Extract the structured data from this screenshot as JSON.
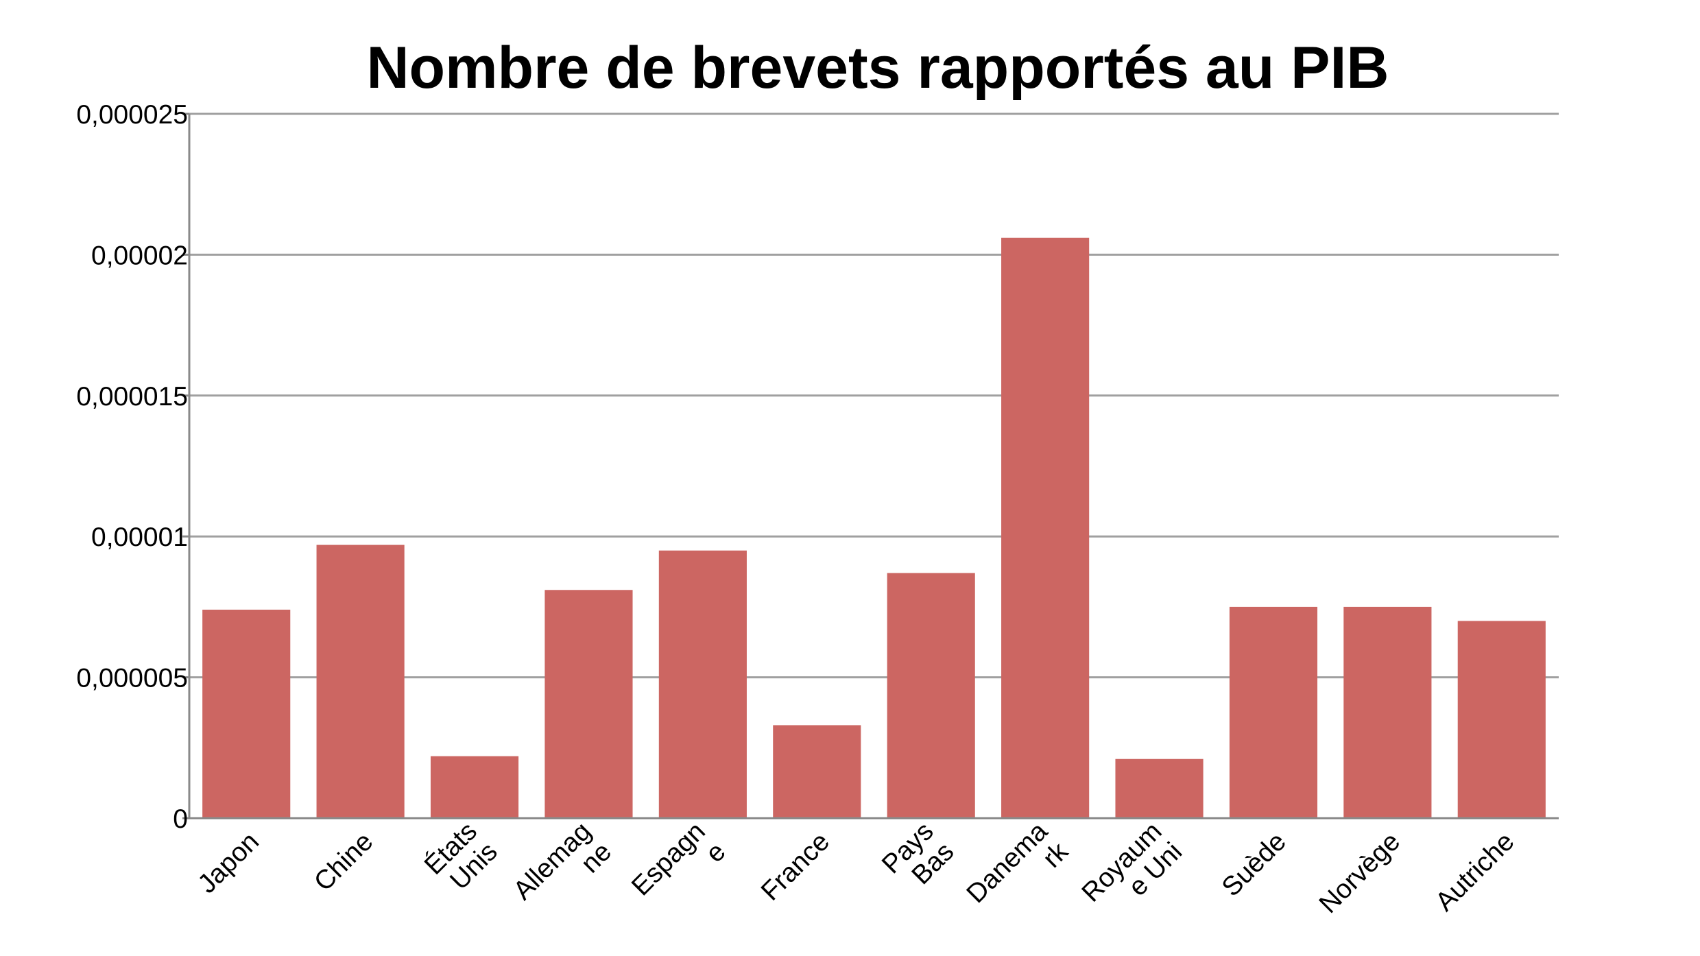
{
  "chart_data": {
    "type": "bar",
    "title": "Nombre de brevets rapportés au PIB",
    "xlabel": "",
    "ylabel": "",
    "ylim": [
      0,
      2.5e-05
    ],
    "yticks": [
      0,
      5e-06,
      1e-05,
      1.5e-05,
      2e-05,
      2.5e-05
    ],
    "ytick_labels": [
      "0",
      "0,000005",
      "0,00001",
      "0,000015",
      "0,00002",
      "0,000025"
    ],
    "grid": true,
    "legend": "none",
    "categories": [
      "Japon",
      "Chine",
      "États Unis",
      "Allemagne",
      "Espagne",
      "France",
      "Pays Bas",
      "Danemark",
      "Royaume Uni",
      "Suède",
      "Norvège",
      "Autriche"
    ],
    "category_labels": [
      [
        "Japon"
      ],
      [
        "Chine"
      ],
      [
        "États",
        "Unis"
      ],
      [
        "Allemag",
        "ne"
      ],
      [
        "Espagn",
        "e"
      ],
      [
        "France"
      ],
      [
        "Pays",
        "Bas"
      ],
      [
        "Danema",
        "rk"
      ],
      [
        "Royaum",
        "e Uni"
      ],
      [
        "Suède"
      ],
      [
        "Norvège"
      ],
      [
        "Autriche"
      ]
    ],
    "values": [
      7.4e-06,
      9.7e-06,
      2.2e-06,
      8.1e-06,
      9.5e-06,
      3.3e-06,
      8.7e-06,
      2.06e-05,
      2.1e-06,
      7.5e-06,
      7.5e-06,
      7e-06
    ],
    "colors": {
      "bar": "#cc6662",
      "grid": "#a0a0a0",
      "axis": "#8a8a8a"
    }
  }
}
